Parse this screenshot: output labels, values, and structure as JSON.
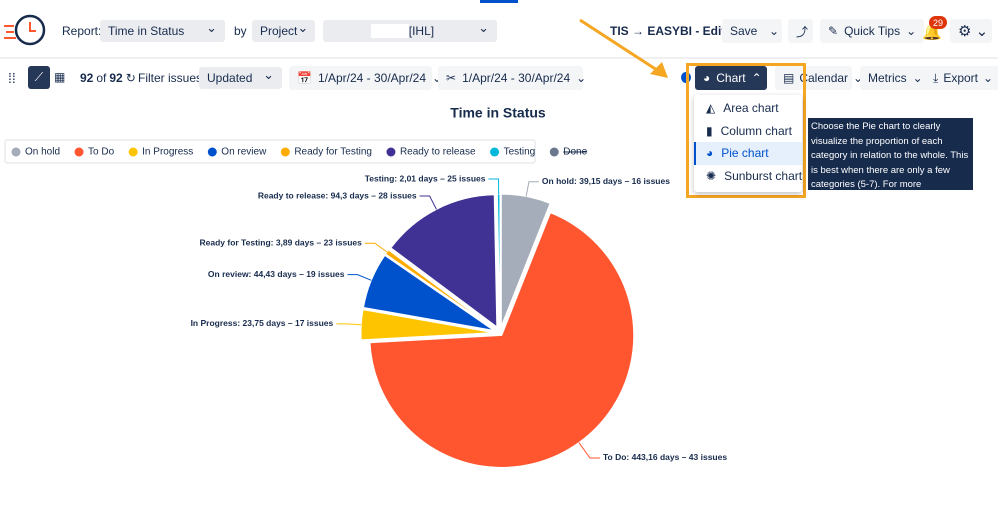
{
  "toolbar": {
    "report_label": "Report:",
    "report_value": "Time in Status",
    "by_label": "by",
    "by_value": "Project",
    "project_value": "[IHL]",
    "view_name": "TIS → EASYBI - Edited",
    "save": "Save",
    "quick_tips": "Quick Tips",
    "notifications": "29"
  },
  "filters": {
    "count": "92",
    "of": "of",
    "total": "92",
    "filter_label": "Filter issues:",
    "filter_value": "Updated",
    "date_range_1": "1/Apr/24 - 30/Apr/24",
    "date_range_2": "1/Apr/24 - 30/Apr/24",
    "chart_button": "Chart",
    "calendar": "Calendar",
    "metrics": "Metrics",
    "export": "Export"
  },
  "chart_menu": {
    "items": [
      "Area chart",
      "Column chart",
      "Pie chart",
      "Sunburst chart"
    ],
    "selected": 2,
    "tooltip": "Choose the Pie chart to clearly visualize the proportion of each category in relation to the whole. This is best when there are only a few categories (5-7). For more categories, consider using a Column chart"
  },
  "chart_data": {
    "type": "pie",
    "title": "Time in Status",
    "categories": [
      "On hold",
      "To Do",
      "In Progress",
      "On review",
      "Ready for Testing",
      "Ready to release",
      "Testing"
    ],
    "values": [
      39.15,
      443.16,
      23.75,
      44.43,
      3.89,
      94.3,
      2.01
    ],
    "value_labels": [
      "On hold: 39,15 days – 16 issues",
      "To Do: 443,16 days – 43 issues",
      "In Progress: 23,75 days – 17 issues",
      "On review: 44,43 days – 19 issues",
      "Ready for Testing: 3,89 days – 23 issues",
      "Ready to release: 94,3 days – 28 issues",
      "Testing: 2,01 days – 25 issues"
    ],
    "colors": [
      "#a5adba",
      "#ff5630",
      "#ffc400",
      "#0052cc",
      "#ffab00",
      "#403294",
      "#00b8d9"
    ],
    "hidden_categories": [
      {
        "name": "Done",
        "color": "#6b778c"
      }
    ]
  }
}
